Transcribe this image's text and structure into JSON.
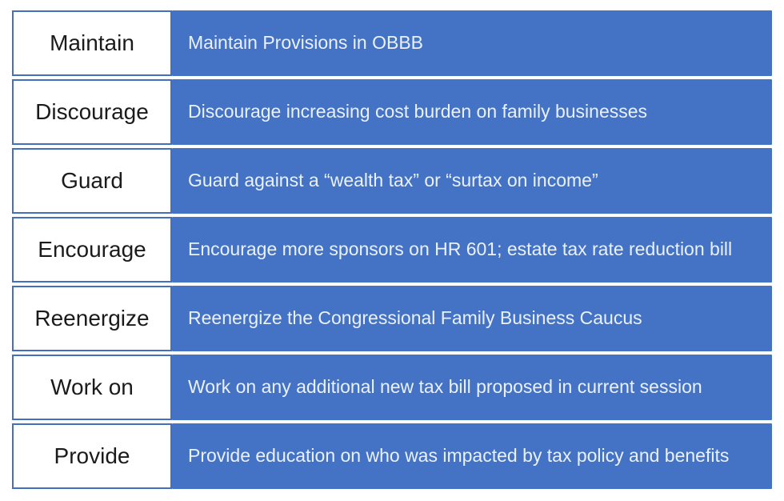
{
  "colors": {
    "bar_blue": "#4472C4",
    "box_border": "#4270BE",
    "label_text": "#1b1b1b",
    "description_text": "#EAF1FB",
    "page_background": "#ffffff"
  },
  "rows": [
    {
      "label": "Maintain",
      "description": "Maintain Provisions in OBBB"
    },
    {
      "label": "Discourage",
      "description": "Discourage increasing cost burden on family businesses"
    },
    {
      "label": "Guard",
      "description": "Guard against a “wealth tax” or “surtax on income”"
    },
    {
      "label": "Encourage",
      "description": "Encourage more sponsors on HR 601; estate tax rate reduction bill"
    },
    {
      "label": "Reenergize",
      "description": "Reenergize the Congressional Family Business Caucus"
    },
    {
      "label": "Work on",
      "description": "Work on any additional new tax bill proposed in current session"
    },
    {
      "label": "Provide",
      "description": "Provide education on who was impacted by tax policy and benefits"
    }
  ]
}
